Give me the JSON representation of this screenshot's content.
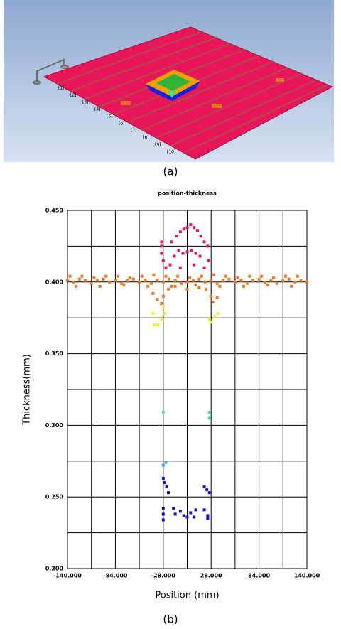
{
  "figure_a": {
    "caption": "(a)",
    "plate_labels": [
      "[1]",
      "[2]",
      "[3]",
      "[4]",
      "[5]",
      "[6]",
      "[7]",
      "[8]",
      "[9]",
      "[10]"
    ]
  },
  "figure_b_caption": "(b)",
  "chart_data": {
    "type": "scatter",
    "title": "position-thickness",
    "x_label": "Position (mm)",
    "y_label": "Thickness(mm)",
    "xlim": [
      -140,
      140
    ],
    "ylim": [
      0.2,
      0.45
    ],
    "xticks": [
      {
        "value": -140,
        "label": "-140.000"
      },
      {
        "value": -84,
        "label": "-84.000"
      },
      {
        "value": -28,
        "label": "-28.000"
      },
      {
        "value": 28,
        "label": "28.000"
      },
      {
        "value": 84,
        "label": "84.000"
      },
      {
        "value": 140,
        "label": "140.000"
      }
    ],
    "yticks": [
      {
        "value": 0.2,
        "label": "0.200"
      },
      {
        "value": 0.25,
        "label": "0.250"
      },
      {
        "value": 0.3,
        "label": "0.300"
      },
      {
        "value": 0.35,
        "label": "0.350"
      },
      {
        "value": 0.4,
        "label": "0.400"
      },
      {
        "value": 0.45,
        "label": "0.450"
      }
    ],
    "xgrid": [
      -140,
      -112,
      -84,
      -56,
      -28,
      0,
      28,
      56,
      84,
      112,
      140
    ],
    "ygrid": [
      0.2,
      0.225,
      0.25,
      0.275,
      0.3,
      0.325,
      0.35,
      0.375,
      0.4,
      0.425,
      0.45
    ],
    "series": [
      {
        "color": "#f07820",
        "x": [
          -140,
          -133,
          -126,
          -119,
          -112,
          -105,
          -98,
          -91,
          -84,
          -77,
          -70,
          -63,
          -56,
          -49,
          -42,
          -35,
          -28,
          -21,
          -14,
          -7,
          0,
          7,
          14,
          21,
          28,
          35,
          42,
          49,
          56,
          63,
          70,
          77,
          84,
          91,
          98,
          105,
          112,
          119,
          126,
          133,
          140,
          -137,
          -123,
          -109,
          -95,
          -81,
          -67,
          -53,
          -39,
          -25,
          -11,
          3,
          17,
          31,
          45,
          59,
          73,
          87,
          101,
          115,
          129,
          -130,
          -102,
          -74,
          -46,
          -18,
          10,
          38,
          66,
          94,
          122,
          -40,
          -35,
          -30,
          -28,
          -22,
          -14,
          0,
          14,
          22,
          28,
          30,
          35
        ],
        "values": [
          0.401,
          0.4,
          0.402,
          0.401,
          0.399,
          0.401,
          0.402,
          0.4,
          0.401,
          0.399,
          0.401,
          0.402,
          0.4,
          0.401,
          0.399,
          0.401,
          0.4,
          0.402,
          0.401,
          0.399,
          0.4,
          0.401,
          0.402,
          0.4,
          0.401,
          0.399,
          0.401,
          0.402,
          0.4,
          0.401,
          0.399,
          0.401,
          0.402,
          0.4,
          0.401,
          0.399,
          0.401,
          0.402,
          0.4,
          0.401,
          0.4,
          0.404,
          0.404,
          0.403,
          0.404,
          0.404,
          0.403,
          0.404,
          0.405,
          0.404,
          0.404,
          0.403,
          0.404,
          0.405,
          0.404,
          0.403,
          0.404,
          0.404,
          0.403,
          0.404,
          0.404,
          0.397,
          0.397,
          0.398,
          0.397,
          0.397,
          0.398,
          0.397,
          0.397,
          0.398,
          0.397,
          0.392,
          0.388,
          0.385,
          0.39,
          0.395,
          0.397,
          0.395,
          0.396,
          0.395,
          0.39,
          0.386,
          0.389
        ]
      },
      {
        "color": "#e0185c",
        "x": [
          -30,
          -30,
          -30,
          -28,
          -25,
          -20,
          -15,
          -12,
          -8,
          -4,
          0,
          4,
          8,
          12,
          16,
          20,
          24,
          -10,
          -5,
          0,
          5,
          10,
          15,
          -8,
          8,
          20,
          25,
          -18
        ],
        "values": [
          0.425,
          0.42,
          0.428,
          0.415,
          0.41,
          0.412,
          0.418,
          0.432,
          0.435,
          0.437,
          0.438,
          0.44,
          0.438,
          0.436,
          0.432,
          0.428,
          0.425,
          0.422,
          0.42,
          0.421,
          0.422,
          0.42,
          0.418,
          0.41,
          0.412,
          0.41,
          0.415,
          0.428
        ]
      },
      {
        "color": "#eeee30",
        "x": [
          -40,
          -38,
          -34,
          -30,
          -26,
          26,
          28,
          32,
          36,
          -28
        ],
        "values": [
          0.378,
          0.37,
          0.37,
          0.374,
          0.378,
          0.374,
          0.372,
          0.376,
          0.378,
          0.382
        ]
      },
      {
        "color": "#40e0a0",
        "x": [
          -28,
          26,
          26
        ],
        "values": [
          0.309,
          0.309,
          0.305
        ]
      },
      {
        "color": "#30b0f0",
        "x": [
          -28,
          -25
        ],
        "values": [
          0.272,
          0.274
        ]
      },
      {
        "color": "#1010d0",
        "x": [
          -28,
          -27,
          -24,
          -22,
          20,
          23,
          26,
          -28,
          -28,
          -28,
          -16,
          -14,
          -8,
          -4,
          0,
          4,
          8,
          10,
          20,
          24,
          24
        ],
        "values": [
          0.263,
          0.26,
          0.257,
          0.253,
          0.257,
          0.255,
          0.253,
          0.242,
          0.238,
          0.234,
          0.242,
          0.238,
          0.24,
          0.237,
          0.236,
          0.239,
          0.236,
          0.241,
          0.241,
          0.237,
          0.235
        ]
      }
    ]
  }
}
